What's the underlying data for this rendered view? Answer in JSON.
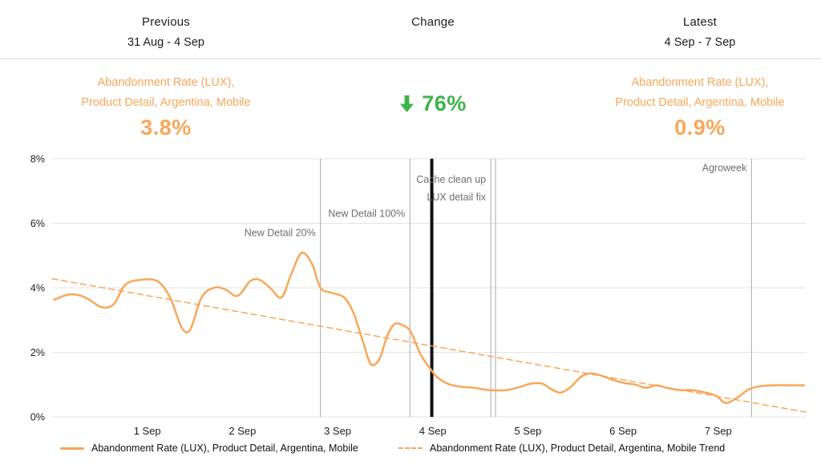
{
  "header": {
    "previous": {
      "label": "Previous",
      "range": "31 Aug - 4 Sep"
    },
    "change": {
      "label": "Change"
    },
    "latest": {
      "label": "Latest",
      "range": "4 Sep - 7 Sep"
    }
  },
  "summary": {
    "previous": {
      "metric_line1": "Abandonment Rate (LUX),",
      "metric_line2": "Product Detail, Argentina, Mobile",
      "value": "3.8%"
    },
    "change": {
      "direction": "down",
      "value": "76%"
    },
    "latest": {
      "metric_line1": "Abandonment Rate (LUX),",
      "metric_line2": "Product Detail, Argentina, Mobile",
      "value": "0.9%"
    }
  },
  "colors": {
    "orange": "#F8A758",
    "green": "#3BB44A",
    "grid": "#E3E3E3",
    "annotation_line": "#A9A9A9",
    "annotation_text": "#6E6E6E",
    "event_line": "#111111",
    "text": "#1C1C1C"
  },
  "chart_data": {
    "type": "line",
    "title": "",
    "xlabel": "",
    "ylabel": "",
    "x_unit": "days from 31 Aug",
    "ylim": [
      0,
      8
    ],
    "xlim": [
      0,
      7.92
    ],
    "grid": true,
    "legend_position": "bottom",
    "y_ticks": [
      {
        "value": 0,
        "label": "0%"
      },
      {
        "value": 2,
        "label": "2%"
      },
      {
        "value": 4,
        "label": "4%"
      },
      {
        "value": 6,
        "label": "6%"
      },
      {
        "value": 8,
        "label": "8%"
      }
    ],
    "x_ticks": [
      {
        "t": 1,
        "label": "1 Sep"
      },
      {
        "t": 2,
        "label": "2 Sep"
      },
      {
        "t": 3,
        "label": "3 Sep"
      },
      {
        "t": 4,
        "label": "4 Sep"
      },
      {
        "t": 5,
        "label": "5 Sep"
      },
      {
        "t": 6,
        "label": "6 Sep"
      },
      {
        "t": 7,
        "label": "7 Sep"
      }
    ],
    "annotations": [
      {
        "t": 2.82,
        "style": "thin",
        "labels": [
          "New Detail 20%"
        ],
        "label_y": 5.6
      },
      {
        "t": 3.76,
        "style": "thin",
        "labels": [
          "New Detail 100%"
        ],
        "label_y": 6.2
      },
      {
        "t": 3.99,
        "style": "thick",
        "labels": [],
        "label_y": 0
      },
      {
        "t": 4.61,
        "style": "thin",
        "labels": [
          "Cache clean up",
          "LUX detail fix"
        ],
        "label_y": 7.25
      },
      {
        "t": 4.66,
        "style": "thin",
        "labels": [],
        "label_y": 0
      },
      {
        "t": 7.35,
        "style": "thin",
        "labels": [
          "Agroweek"
        ],
        "label_y": 7.62
      }
    ],
    "series": [
      {
        "name": "Abandonment Rate (LUX), Product Detail, Argentina, Mobile",
        "style": "solid",
        "smooth": true,
        "points": [
          [
            0.02,
            3.63
          ],
          [
            0.19,
            3.8
          ],
          [
            0.35,
            3.7
          ],
          [
            0.52,
            3.4
          ],
          [
            0.65,
            3.5
          ],
          [
            0.77,
            4.1
          ],
          [
            0.94,
            4.25
          ],
          [
            1.11,
            4.2
          ],
          [
            1.24,
            3.7
          ],
          [
            1.36,
            2.78
          ],
          [
            1.45,
            2.7
          ],
          [
            1.57,
            3.7
          ],
          [
            1.7,
            4.0
          ],
          [
            1.82,
            3.95
          ],
          [
            1.95,
            3.75
          ],
          [
            2.08,
            4.2
          ],
          [
            2.18,
            4.25
          ],
          [
            2.29,
            4.0
          ],
          [
            2.41,
            3.7
          ],
          [
            2.51,
            4.4
          ],
          [
            2.62,
            5.08
          ],
          [
            2.73,
            4.75
          ],
          [
            2.82,
            4.0
          ],
          [
            2.93,
            3.85
          ],
          [
            3.07,
            3.7
          ],
          [
            3.17,
            3.2
          ],
          [
            3.27,
            2.3
          ],
          [
            3.35,
            1.63
          ],
          [
            3.44,
            1.8
          ],
          [
            3.52,
            2.5
          ],
          [
            3.6,
            2.88
          ],
          [
            3.69,
            2.83
          ],
          [
            3.77,
            2.63
          ],
          [
            3.87,
            1.95
          ],
          [
            3.96,
            1.55
          ],
          [
            4.04,
            1.25
          ],
          [
            4.14,
            1.05
          ],
          [
            4.26,
            0.95
          ],
          [
            4.43,
            0.9
          ],
          [
            4.6,
            0.83
          ],
          [
            4.77,
            0.83
          ],
          [
            4.92,
            0.93
          ],
          [
            5.03,
            1.03
          ],
          [
            5.15,
            1.03
          ],
          [
            5.25,
            0.85
          ],
          [
            5.34,
            0.75
          ],
          [
            5.44,
            0.9
          ],
          [
            5.56,
            1.25
          ],
          [
            5.66,
            1.35
          ],
          [
            5.77,
            1.28
          ],
          [
            5.89,
            1.15
          ],
          [
            6.01,
            1.05
          ],
          [
            6.13,
            1.0
          ],
          [
            6.24,
            0.9
          ],
          [
            6.35,
            0.98
          ],
          [
            6.46,
            0.9
          ],
          [
            6.6,
            0.83
          ],
          [
            6.73,
            0.83
          ],
          [
            6.87,
            0.75
          ],
          [
            6.98,
            0.65
          ],
          [
            7.08,
            0.43
          ],
          [
            7.2,
            0.6
          ],
          [
            7.32,
            0.85
          ],
          [
            7.44,
            0.95
          ],
          [
            7.58,
            0.98
          ],
          [
            7.75,
            0.98
          ],
          [
            7.9,
            0.98
          ]
        ]
      },
      {
        "name": "Abandonment Rate (LUX), Product Detail, Argentina, Mobile Trend",
        "style": "dashed",
        "smooth": false,
        "points": [
          [
            0,
            4.28
          ],
          [
            7.92,
            0.15
          ]
        ]
      }
    ]
  }
}
